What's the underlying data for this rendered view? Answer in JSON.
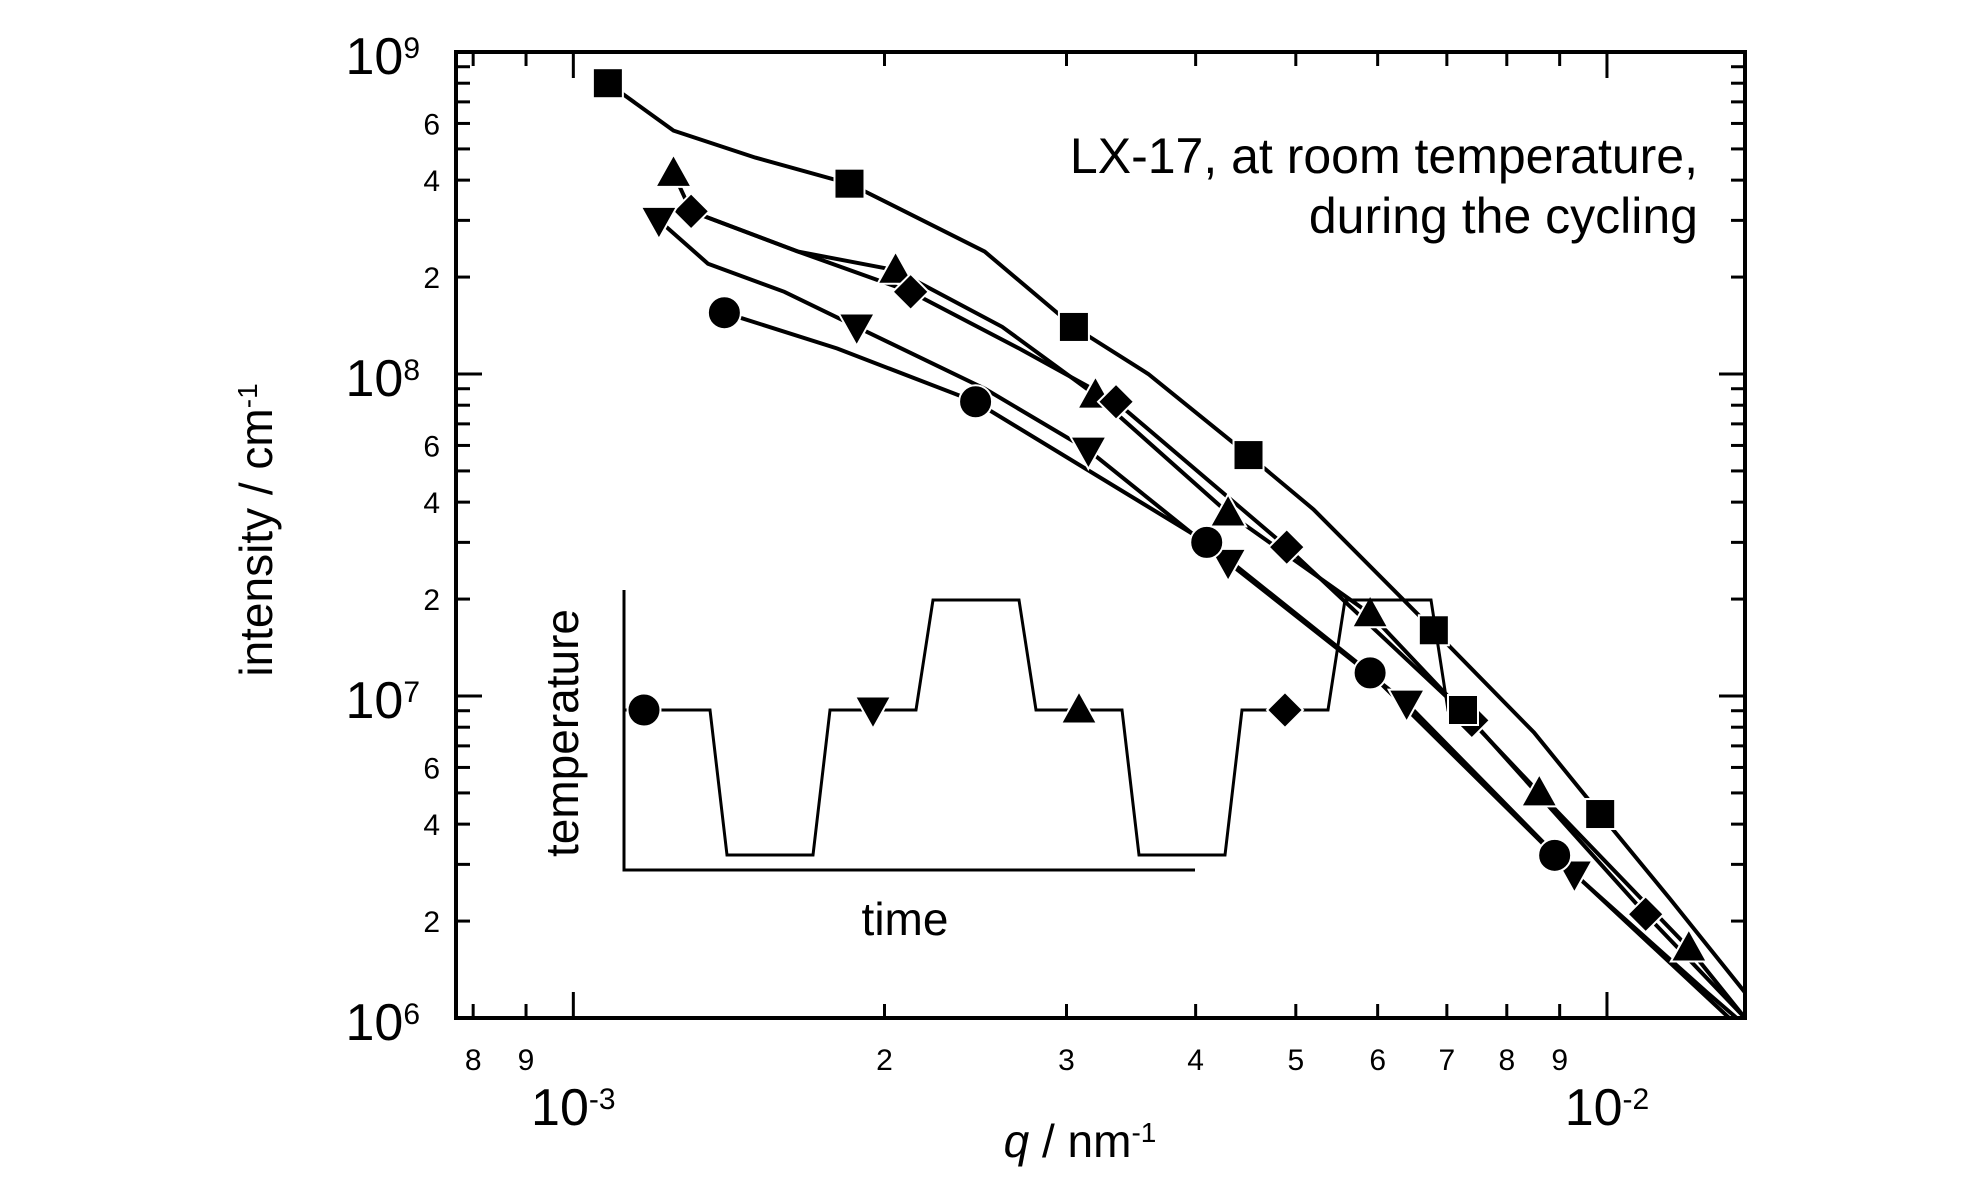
{
  "chart_data": {
    "type": "scatter",
    "title": "",
    "xlabel": {
      "italic": "q",
      "text": " / nm",
      "sup": "-1"
    },
    "ylabel": {
      "text": "intensity / cm",
      "sup": "-1"
    },
    "xscale": "log",
    "yscale": "log",
    "xlim": [
      0.00077,
      0.0136
    ],
    "ylim": [
      1000000,
      1000000000
    ],
    "x_minor_tick_labels": [
      {
        "value": 0.0008,
        "label": "8"
      },
      {
        "value": 0.0009,
        "label": "9"
      },
      {
        "value": 0.002,
        "label": "2"
      },
      {
        "value": 0.003,
        "label": "3"
      },
      {
        "value": 0.004,
        "label": "4"
      },
      {
        "value": 0.005,
        "label": "5"
      },
      {
        "value": 0.006,
        "label": "6"
      },
      {
        "value": 0.007,
        "label": "7"
      },
      {
        "value": 0.008,
        "label": "8"
      },
      {
        "value": 0.009,
        "label": "9"
      }
    ],
    "x_decade_labels": [
      {
        "value": 0.001,
        "base": "10",
        "exp": "-3"
      },
      {
        "value": 0.01,
        "base": "10",
        "exp": "-2"
      }
    ],
    "y_minor_tick_labels": [
      {
        "value": 600000000,
        "label": "6"
      },
      {
        "value": 400000000,
        "label": "4"
      },
      {
        "value": 200000000,
        "label": "2"
      },
      {
        "value": 60000000,
        "label": "6"
      },
      {
        "value": 40000000,
        "label": "4"
      },
      {
        "value": 20000000,
        "label": "2"
      },
      {
        "value": 6000000,
        "label": "6"
      },
      {
        "value": 4000000,
        "label": "4"
      },
      {
        "value": 2000000,
        "label": "2"
      }
    ],
    "y_decade_labels": [
      {
        "value": 1000000000,
        "base": "10",
        "exp": "9"
      },
      {
        "value": 100000000,
        "base": "10",
        "exp": "8"
      },
      {
        "value": 10000000,
        "base": "10",
        "exp": "7"
      },
      {
        "value": 1000000,
        "base": "10",
        "exp": "6"
      }
    ],
    "annotation": [
      "LX-17, at room temperature,",
      "during the cycling"
    ],
    "legend": "none",
    "grid": false,
    "series": [
      {
        "marker": "square",
        "points": [
          [
            0.00108,
            800000000
          ],
          [
            0.00185,
            390000000
          ],
          [
            0.00305,
            140000000
          ],
          [
            0.0045,
            56000000
          ],
          [
            0.0068,
            16000000
          ],
          [
            0.00985,
            4300000
          ]
        ],
        "line": [
          [
            0.00108,
            800000000
          ],
          [
            0.00125,
            570000000
          ],
          [
            0.0015,
            470000000
          ],
          [
            0.00185,
            390000000
          ],
          [
            0.0025,
            240000000
          ],
          [
            0.00305,
            140000000
          ],
          [
            0.0036,
            100000000
          ],
          [
            0.0045,
            56000000
          ],
          [
            0.0052,
            38000000
          ],
          [
            0.0068,
            16000000
          ],
          [
            0.0085,
            7700000
          ],
          [
            0.00985,
            4300000
          ],
          [
            0.0115,
            2350000
          ],
          [
            0.0136,
            1200000
          ]
        ]
      },
      {
        "marker": "triangle-up",
        "points": [
          [
            0.00125,
            420000000
          ],
          [
            0.00205,
            210000000
          ],
          [
            0.0032,
            86000000
          ],
          [
            0.0043,
            37000000
          ],
          [
            0.0059,
            18000000
          ],
          [
            0.0086,
            5000000
          ],
          [
            0.012,
            1650000
          ]
        ],
        "line": [
          [
            0.00125,
            420000000
          ],
          [
            0.0013,
            320000000
          ],
          [
            0.00165,
            240000000
          ],
          [
            0.00205,
            210000000
          ],
          [
            0.0026,
            140000000
          ],
          [
            0.0032,
            86000000
          ],
          [
            0.0043,
            37000000
          ],
          [
            0.0059,
            18000000
          ],
          [
            0.0086,
            5000000
          ],
          [
            0.012,
            1650000
          ],
          [
            0.0136,
            1000000
          ]
        ]
      },
      {
        "marker": "diamond",
        "points": [
          [
            0.0013,
            320000000
          ],
          [
            0.00212,
            180000000
          ],
          [
            0.00335,
            82000000
          ],
          [
            0.0049,
            29000000
          ],
          [
            0.0074,
            8400000
          ],
          [
            0.0109,
            2100000
          ]
        ],
        "line": [
          [
            0.0013,
            320000000
          ],
          [
            0.00165,
            240000000
          ],
          [
            0.00212,
            180000000
          ],
          [
            0.0027,
            120000000
          ],
          [
            0.00335,
            82000000
          ],
          [
            0.0049,
            29000000
          ],
          [
            0.0074,
            8400000
          ],
          [
            0.0109,
            2100000
          ],
          [
            0.0136,
            1000000
          ]
        ]
      },
      {
        "marker": "triangle-down",
        "points": [
          [
            0.00121,
            300000000
          ],
          [
            0.00188,
            140000000
          ],
          [
            0.00315,
            58000000
          ],
          [
            0.0043,
            26000000
          ],
          [
            0.0064,
            9500000
          ],
          [
            0.0093,
            2800000
          ]
        ],
        "line": [
          [
            0.00121,
            300000000
          ],
          [
            0.00135,
            220000000
          ],
          [
            0.0016,
            180000000
          ],
          [
            0.00188,
            140000000
          ],
          [
            0.0025,
            90000000
          ],
          [
            0.00315,
            58000000
          ],
          [
            0.0043,
            26000000
          ],
          [
            0.0064,
            9500000
          ],
          [
            0.0093,
            2800000
          ],
          [
            0.0125,
            1200000
          ],
          [
            0.0136,
            950000
          ]
        ]
      },
      {
        "marker": "circle",
        "points": [
          [
            0.0014,
            155000000
          ],
          [
            0.00245,
            82000000
          ],
          [
            0.0041,
            30000000
          ],
          [
            0.0059,
            11800000
          ],
          [
            0.0089,
            3200000
          ]
        ],
        "line": [
          [
            0.0014,
            155000000
          ],
          [
            0.0018,
            120000000
          ],
          [
            0.00245,
            82000000
          ],
          [
            0.0041,
            30000000
          ],
          [
            0.0059,
            11800000
          ],
          [
            0.0089,
            3200000
          ],
          [
            0.0136,
            900000
          ]
        ]
      }
    ],
    "inset": {
      "type": "line",
      "xlabel": "time",
      "ylabel": "temperature",
      "profile": [
        "room",
        "low",
        "room",
        "high",
        "room",
        "low",
        "room",
        "high",
        "room"
      ],
      "markers": [
        {
          "marker": "circle",
          "stage": "room"
        },
        {
          "marker": "triangle-down",
          "stage": "room"
        },
        {
          "marker": "triangle-up",
          "stage": "room"
        },
        {
          "marker": "diamond",
          "stage": "room"
        },
        {
          "marker": "square",
          "stage": "room"
        }
      ]
    }
  }
}
